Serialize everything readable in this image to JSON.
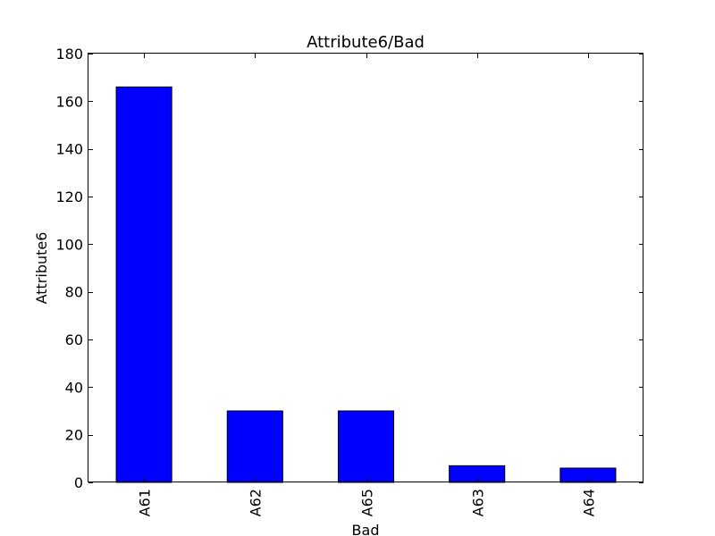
{
  "chart_data": {
    "type": "bar",
    "title": "Attribute6/Bad",
    "xlabel": "Bad",
    "ylabel": "Attribute6",
    "categories": [
      "A61",
      "A62",
      "A65",
      "A63",
      "A64"
    ],
    "values": [
      166,
      30,
      30,
      7,
      6
    ],
    "ylim": [
      0,
      180
    ],
    "yticks": [
      0,
      20,
      40,
      60,
      80,
      100,
      120,
      140,
      160,
      180
    ],
    "bar_color": "#0000ff",
    "grid": false,
    "legend": "none"
  }
}
